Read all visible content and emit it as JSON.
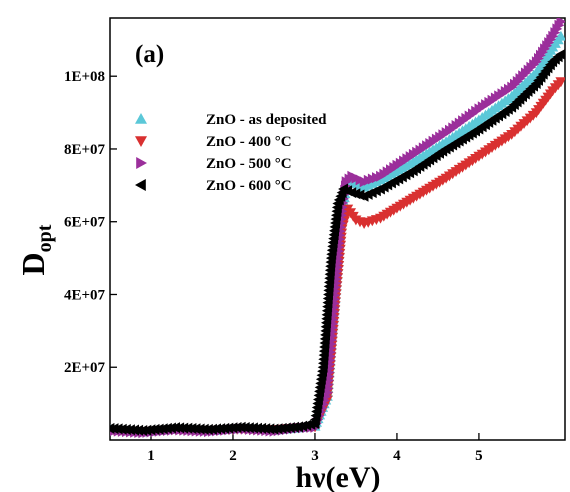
{
  "chart_data": {
    "type": "scatter",
    "panel_label": "(a)",
    "xlabel": "hν(eV)",
    "ylabel_main": "D",
    "ylabel_sub": "opt",
    "xlim": [
      0.5,
      6.05
    ],
    "ylim": [
      0,
      116000000
    ],
    "xticks": [
      1,
      2,
      3,
      4,
      5
    ],
    "xtick_labels": [
      "1",
      "2",
      "3",
      "4",
      "5"
    ],
    "yticks": [
      20000000,
      40000000,
      60000000,
      80000000,
      100000000
    ],
    "ytick_labels": [
      "2E+07",
      "4E+07",
      "6E+07",
      "8E+07",
      "1E+08"
    ],
    "grid": false,
    "legend_position": "top-left",
    "series": [
      {
        "name": "ZnO -  as deposited",
        "marker": "triangle-up",
        "color": "#5bc8d8",
        "points": [
          [
            0.5,
            2800000
          ],
          [
            0.9,
            2200000
          ],
          [
            1.3,
            3000000
          ],
          [
            1.7,
            2500000
          ],
          [
            2.1,
            3200000
          ],
          [
            2.5,
            2700000
          ],
          [
            2.8,
            3300000
          ],
          [
            3.0,
            3800000
          ],
          [
            3.15,
            12000000
          ],
          [
            3.25,
            40000000
          ],
          [
            3.33,
            62000000
          ],
          [
            3.38,
            70000000
          ],
          [
            3.45,
            71000000
          ],
          [
            3.6,
            69500000
          ],
          [
            3.8,
            71500000
          ],
          [
            4.2,
            76500000
          ],
          [
            4.6,
            82000000
          ],
          [
            5.0,
            88000000
          ],
          [
            5.4,
            94500000
          ],
          [
            5.7,
            101000000
          ],
          [
            5.9,
            108000000
          ],
          [
            6.0,
            111000000
          ]
        ]
      },
      {
        "name": "ZnO -  400 °C",
        "marker": "triangle-down",
        "color": "#d93030",
        "points": [
          [
            0.5,
            2700000
          ],
          [
            0.9,
            2300000
          ],
          [
            1.3,
            2900000
          ],
          [
            1.7,
            2600000
          ],
          [
            2.1,
            3000000
          ],
          [
            2.5,
            2800000
          ],
          [
            2.8,
            3400000
          ],
          [
            3.0,
            3600000
          ],
          [
            3.15,
            11000000
          ],
          [
            3.25,
            38000000
          ],
          [
            3.33,
            58000000
          ],
          [
            3.4,
            63500000
          ],
          [
            3.5,
            60500000
          ],
          [
            3.6,
            59500000
          ],
          [
            3.8,
            61000000
          ],
          [
            4.2,
            66500000
          ],
          [
            4.6,
            72000000
          ],
          [
            5.0,
            78000000
          ],
          [
            5.4,
            84000000
          ],
          [
            5.7,
            90000000
          ],
          [
            5.9,
            96000000
          ],
          [
            6.0,
            98500000
          ]
        ]
      },
      {
        "name": "ZnO -  500 °C",
        "marker": "triangle-right",
        "color": "#9b2f9b",
        "points": [
          [
            0.5,
            2600000
          ],
          [
            0.9,
            2000000
          ],
          [
            1.3,
            2800000
          ],
          [
            1.7,
            2300000
          ],
          [
            2.1,
            3100000
          ],
          [
            2.5,
            2400000
          ],
          [
            2.8,
            3300000
          ],
          [
            3.0,
            3500000
          ],
          [
            3.15,
            13000000
          ],
          [
            3.25,
            42000000
          ],
          [
            3.33,
            64000000
          ],
          [
            3.38,
            71000000
          ],
          [
            3.45,
            72500000
          ],
          [
            3.6,
            71000000
          ],
          [
            3.8,
            72500000
          ],
          [
            4.2,
            78500000
          ],
          [
            4.6,
            84500000
          ],
          [
            5.0,
            91000000
          ],
          [
            5.4,
            97000000
          ],
          [
            5.7,
            104000000
          ],
          [
            5.9,
            111000000
          ],
          [
            6.0,
            115000000
          ]
        ]
      },
      {
        "name": "ZnO -  600 °C",
        "marker": "triangle-left",
        "color": "#000000",
        "points": [
          [
            0.5,
            3200000
          ],
          [
            0.9,
            2600000
          ],
          [
            1.3,
            3400000
          ],
          [
            1.7,
            2900000
          ],
          [
            2.1,
            3500000
          ],
          [
            2.5,
            3000000
          ],
          [
            2.8,
            3600000
          ],
          [
            3.0,
            4500000
          ],
          [
            3.1,
            20000000
          ],
          [
            3.2,
            50000000
          ],
          [
            3.28,
            65000000
          ],
          [
            3.35,
            69000000
          ],
          [
            3.45,
            68000000
          ],
          [
            3.6,
            67000000
          ],
          [
            3.8,
            69000000
          ],
          [
            4.2,
            74000000
          ],
          [
            4.6,
            80000000
          ],
          [
            5.0,
            85500000
          ],
          [
            5.4,
            91500000
          ],
          [
            5.7,
            98000000
          ],
          [
            5.9,
            104000000
          ],
          [
            6.0,
            106000000
          ]
        ]
      }
    ]
  }
}
